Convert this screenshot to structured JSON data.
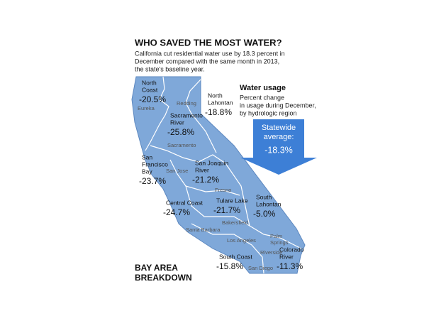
{
  "header": {
    "title": "WHO SAVED THE MOST WATER?",
    "subtitle": [
      "California cut residential water use by 18.3 percent in",
      "December compared with the same month in 2013,",
      "the state's baseline year."
    ]
  },
  "legend": {
    "title": "Water usage",
    "description": [
      "Percent change",
      "in usage during December,",
      "by hydrologic region"
    ]
  },
  "statewide": {
    "label": [
      "Statewide",
      "average:"
    ],
    "value": "-18.3%"
  },
  "regions": [
    {
      "name": [
        "North",
        "Coast"
      ],
      "value": "-20.5%"
    },
    {
      "name": [
        "North",
        "Lahontan"
      ],
      "value": "-18.8%"
    },
    {
      "name": [
        "Sacramento",
        "River"
      ],
      "value": "-25.8%"
    },
    {
      "name": [
        "San",
        "Francisco",
        "Bay"
      ],
      "value": "-23.7%"
    },
    {
      "name": [
        "San Joaquin",
        "River"
      ],
      "value": "-21.2%"
    },
    {
      "name": [
        "Tulare Lake"
      ],
      "value": "-21.7%"
    },
    {
      "name": [
        "South",
        "Lahontan"
      ],
      "value": "-5.0%"
    },
    {
      "name": [
        "Central Coast"
      ],
      "value": "-24.7%"
    },
    {
      "name": [
        "South Coast"
      ],
      "value": "-15.8%"
    },
    {
      "name": [
        "Colorado",
        "River"
      ],
      "value": "-11.3%"
    }
  ],
  "cities": [
    [
      "Eureka"
    ],
    [
      "Redding"
    ],
    [
      "Sacramento"
    ],
    [
      "San Jose"
    ],
    [
      "Fresno"
    ],
    [
      "Bakersfield"
    ],
    [
      "Santa Barbara"
    ],
    [
      "Los Angeles"
    ],
    [
      "Palm",
      "Springs"
    ],
    [
      "Riverside"
    ],
    [
      "San Diego"
    ]
  ],
  "footer": [
    "BAY AREA",
    "BREAKDOWN"
  ]
}
